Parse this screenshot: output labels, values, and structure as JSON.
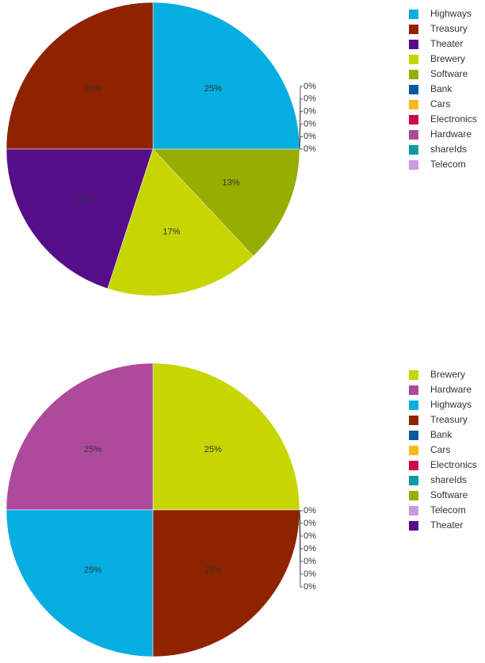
{
  "chart_data": [
    {
      "type": "pie",
      "categories": [
        "Highways",
        "Treasury",
        "Theater",
        "Brewery",
        "Software",
        "Bank",
        "Cars",
        "Electronics",
        "Hardware",
        "shareIds",
        "Telecom"
      ],
      "values": [
        25,
        25,
        20,
        17,
        13,
        0,
        0,
        0,
        0,
        0,
        0
      ],
      "value_labels": [
        "25%",
        "25%",
        "20%",
        "17%",
        "13%",
        "0%",
        "0%",
        "0%",
        "0%",
        "0%",
        "0%"
      ],
      "colors": [
        "#05aee1",
        "#8f2300",
        "#560d8a",
        "#c7d500",
        "#97ae00",
        "#0a5a9b",
        "#ffb81c",
        "#cc0a4a",
        "#ad4a9b",
        "#0e9aa0",
        "#cc99dd"
      ]
    },
    {
      "type": "pie",
      "categories": [
        "Brewery",
        "Hardware",
        "Highways",
        "Treasury",
        "Bank",
        "Cars",
        "Electronics",
        "shareIds",
        "Software",
        "Telecom",
        "Theater"
      ],
      "values": [
        25,
        25,
        25,
        25,
        0,
        0,
        0,
        0,
        0,
        0,
        0
      ],
      "value_labels": [
        "25%",
        "25%",
        "25%",
        "25%",
        "0%",
        "0%",
        "0%",
        "0%",
        "0%",
        "0%",
        "0%"
      ],
      "colors": [
        "#c7d500",
        "#ad4a9b",
        "#05aee1",
        "#8f2300",
        "#0a5a9b",
        "#ffb81c",
        "#cc0a4a",
        "#0e9aa0",
        "#97ae00",
        "#cc99dd",
        "#560d8a"
      ]
    }
  ]
}
